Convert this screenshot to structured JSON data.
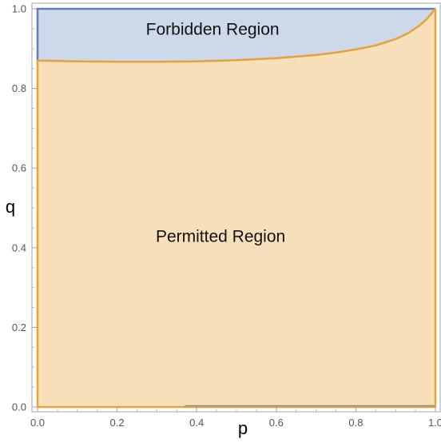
{
  "chart_data": {
    "type": "area",
    "xlabel": "p",
    "ylabel": "q",
    "xlim": [
      0,
      1
    ],
    "ylim": [
      0,
      1
    ],
    "x_ticks": [
      0.0,
      0.2,
      0.4,
      0.6,
      0.8,
      1.0
    ],
    "x_tick_labels": [
      "0.0",
      "0.2",
      "0.4",
      "0.6",
      "0.8",
      "1.0"
    ],
    "y_ticks": [
      0.0,
      0.2,
      0.4,
      0.6,
      0.8,
      1.0
    ],
    "y_tick_labels": [
      "0.0",
      "0.2",
      "0.4",
      "0.6",
      "0.8",
      "1.0"
    ],
    "grid": false,
    "regions": [
      {
        "label": "Forbidden Region",
        "color": "#cdd9ea",
        "edge_color": "#5e81b5",
        "label_at": {
          "x": 0.44,
          "y": 0.935
        }
      },
      {
        "label": "Permitted Region",
        "color": "#f7dfba",
        "edge_color": "#e5a23a",
        "label_at": {
          "x": 0.46,
          "y": 0.415
        }
      }
    ],
    "boundary_curve": {
      "x": [
        0.0,
        0.05,
        0.1,
        0.2,
        0.3,
        0.4,
        0.5,
        0.6,
        0.7,
        0.75,
        0.8,
        0.85,
        0.9,
        0.93,
        0.96,
        0.98,
        1.0
      ],
      "y": [
        0.87,
        0.869,
        0.868,
        0.867,
        0.867,
        0.868,
        0.871,
        0.876,
        0.884,
        0.89,
        0.898,
        0.908,
        0.924,
        0.938,
        0.958,
        0.976,
        1.0
      ]
    }
  }
}
